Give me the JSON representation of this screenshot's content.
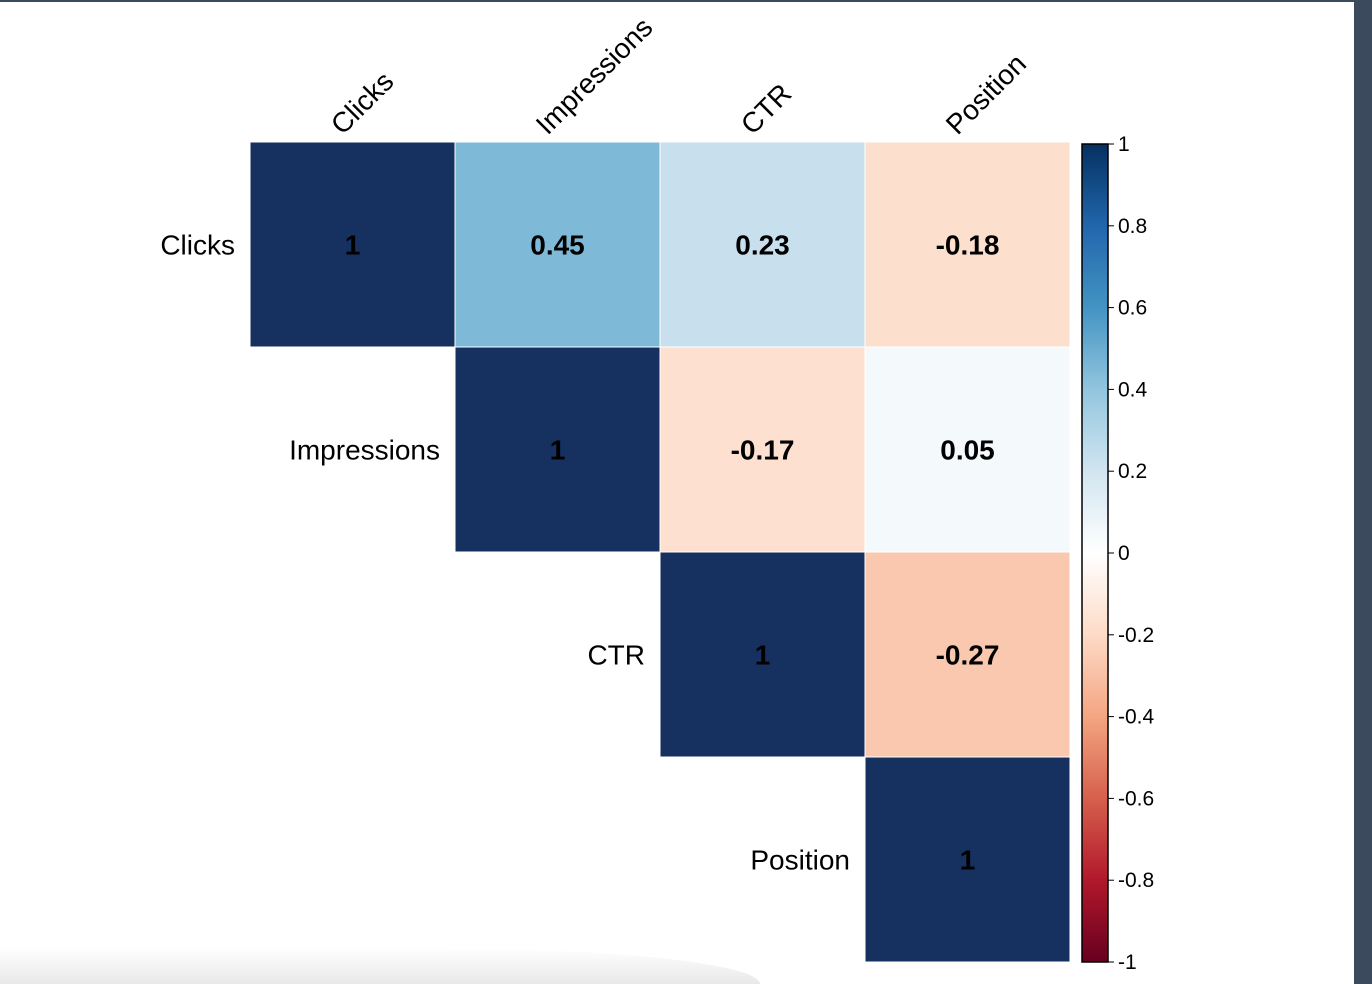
{
  "chart_data": {
    "type": "heatmap",
    "variables": [
      "Clicks",
      "Impressions",
      "CTR",
      "Position"
    ],
    "matrix": [
      [
        1,
        0.45,
        0.23,
        -0.18
      ],
      [
        null,
        1,
        -0.17,
        0.05
      ],
      [
        null,
        null,
        1,
        -0.27
      ],
      [
        null,
        null,
        null,
        1
      ]
    ],
    "cell_labels": [
      [
        "1",
        "0.45",
        "0.23",
        "-0.18"
      ],
      [
        "",
        "1",
        "-0.17",
        "0.05"
      ],
      [
        "",
        "",
        "1",
        "-0.27"
      ],
      [
        "",
        "",
        "",
        "1"
      ]
    ],
    "layout": "upper-triangle",
    "colorbar": {
      "range": [
        -1,
        1
      ],
      "ticks": [
        "1",
        "0.8",
        "0.6",
        "0.4",
        "0.2",
        "0",
        "-0.2",
        "-0.4",
        "-0.6",
        "-0.8",
        "-1"
      ],
      "colors": {
        "minus1": "#67001f",
        "minus0_8": "#b2182b",
        "minus0_6": "#d6604d",
        "minus0_4": "#f4a582",
        "minus0_2": "#fddbc7",
        "zero": "#ffffff",
        "plus0_2": "#d1e5f0",
        "plus0_4": "#92c5de",
        "plus0_6": "#4393c3",
        "plus0_8": "#2166ac",
        "plus1": "#053061"
      }
    },
    "diagonal_color": "#163060"
  }
}
